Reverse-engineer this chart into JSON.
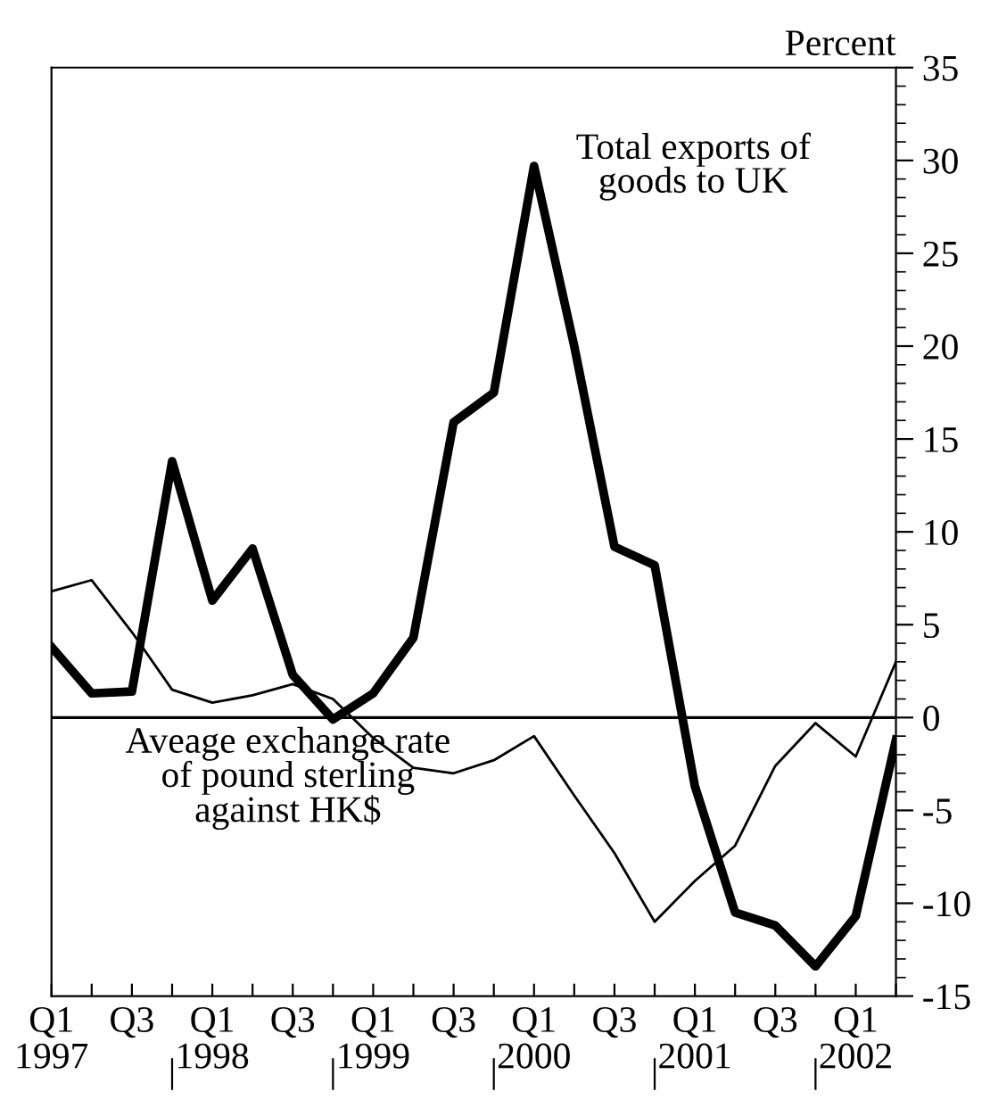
{
  "chart_data": {
    "type": "line",
    "ylabel": "Percent",
    "categories": [
      "Q1\n1997",
      null,
      "Q3",
      null,
      "Q1\n1998",
      null,
      "Q3",
      null,
      "Q1\n1999",
      null,
      "Q3",
      null,
      "Q1\n2000",
      null,
      "Q3",
      null,
      "Q1\n2001",
      null,
      "Q3",
      null,
      "Q1\n2002",
      null
    ],
    "series": [
      {
        "name": "Total exports of goods to UK",
        "color": "#000000",
        "values": [
          3.8,
          1.3,
          1.4,
          13.8,
          6.3,
          9.1,
          2.3,
          -0.1,
          1.3,
          4.3,
          15.9,
          17.5,
          29.7,
          20,
          9.2,
          8.2,
          -3.7,
          -10.5,
          -11.2,
          -13.4,
          -10.7,
          -1.2
        ]
      },
      {
        "name": "Aveage exchange rate of pound sterling against HK$",
        "color": "#000000",
        "values": [
          6.8,
          7.4,
          4.6,
          1.5,
          0.8,
          1.2,
          1.8,
          1.0,
          -1.1,
          -2.7,
          -3.0,
          -2.3,
          -1.0,
          -4.2,
          -7.3,
          -11.0,
          -8.8,
          -6.9,
          -2.6,
          -0.3,
          -2.1,
          3.0
        ]
      }
    ],
    "ylim": [
      -15,
      35
    ],
    "yticks": [
      -15,
      -10,
      -5,
      0,
      5,
      10,
      15,
      20,
      25,
      30,
      35
    ],
    "ref_lines": [
      {
        "axis": "y",
        "value": 0,
        "color": "#000000"
      }
    ],
    "grid": false,
    "legend": false,
    "line_style": "solid",
    "marker": "none"
  }
}
